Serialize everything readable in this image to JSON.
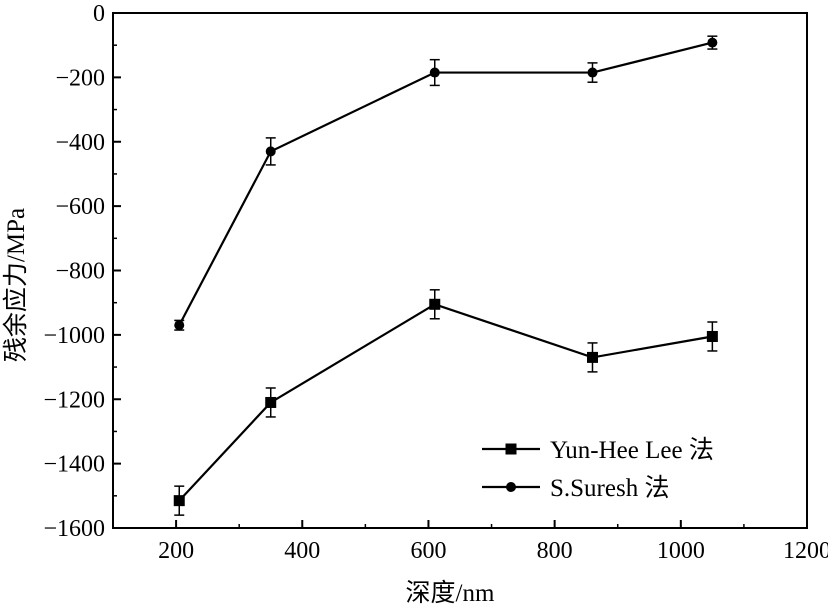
{
  "chart_data": {
    "type": "line",
    "title": "",
    "xlabel": "深度/nm",
    "ylabel": "残余应力/MPa",
    "xlim": [
      100,
      1200
    ],
    "ylim": [
      -1600,
      0
    ],
    "xticks": [
      200,
      400,
      600,
      800,
      1000,
      1200
    ],
    "yticks": [
      0,
      -200,
      -400,
      -600,
      -800,
      -1000,
      -1200,
      -1400,
      -1600
    ],
    "xtick_labels": [
      "200",
      "400",
      "600",
      "800",
      "1000",
      "1200"
    ],
    "ytick_labels": [
      "0",
      "−200",
      "−400",
      "−600",
      "−800",
      "−1000",
      "−1200",
      "−1400",
      "−1600"
    ],
    "legend_position": "bottom-right",
    "series": [
      {
        "name": "Yun-Hee Lee 法",
        "marker": "square",
        "x": [
          205,
          350,
          610,
          860,
          1050
        ],
        "values": [
          -1515,
          -1210,
          -905,
          -1070,
          -1005
        ],
        "error": [
          45,
          45,
          45,
          45,
          45
        ]
      },
      {
        "name": "S.Suresh 法",
        "marker": "circle",
        "x": [
          205,
          350,
          610,
          860,
          1050
        ],
        "values": [
          -970,
          -430,
          -185,
          -185,
          -92
        ],
        "error": [
          15,
          42,
          40,
          30,
          20
        ]
      }
    ],
    "colors": {
      "line": "#000000",
      "background": "#ffffff"
    }
  }
}
